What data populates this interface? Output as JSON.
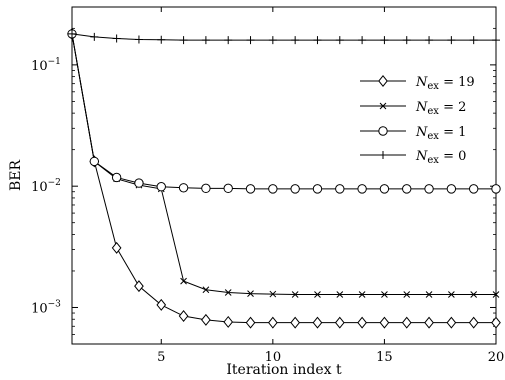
{
  "chart_data": {
    "type": "line",
    "xlabel": "Iteration index t",
    "ylabel": "BER",
    "xlim": [
      1,
      20
    ],
    "ylim": [
      0.0005,
      0.3
    ],
    "yscale": "log",
    "grid": false,
    "legend_position": "right",
    "x_ticks": [
      5,
      10,
      15,
      20
    ],
    "x_tick_labels": [
      "5",
      "10",
      "15",
      "20"
    ],
    "y_ticks": [
      0.001,
      0.01,
      0.1
    ],
    "y_tick_labels": [
      "10",
      "10",
      "10"
    ],
    "y_tick_exponents": [
      "−3",
      "−2",
      "−1"
    ],
    "x": [
      1,
      2,
      3,
      4,
      5,
      6,
      7,
      8,
      9,
      10,
      11,
      12,
      13,
      14,
      15,
      16,
      17,
      18,
      19,
      20
    ],
    "series": [
      {
        "name": "N_ex = 19",
        "legend_text": "N",
        "legend_sub": "ex",
        "legend_value": " = 19",
        "marker": "diamond",
        "values": [
          0.18,
          0.016,
          0.0031,
          0.0015,
          0.00105,
          0.00085,
          0.00079,
          0.00076,
          0.00075,
          0.00075,
          0.00075,
          0.00075,
          0.00075,
          0.00075,
          0.00075,
          0.00075,
          0.00075,
          0.00075,
          0.00075,
          0.00075
        ]
      },
      {
        "name": "N_ex = 2",
        "legend_text": "N",
        "legend_sub": "ex",
        "legend_value": " = 2",
        "marker": "x",
        "values": [
          0.18,
          0.016,
          0.0115,
          0.0102,
          0.0095,
          0.00165,
          0.0014,
          0.00133,
          0.0013,
          0.00129,
          0.00128,
          0.00128,
          0.00128,
          0.00128,
          0.00128,
          0.00128,
          0.00128,
          0.00128,
          0.00128,
          0.00128
        ]
      },
      {
        "name": "N_ex = 1",
        "legend_text": "N",
        "legend_sub": "ex",
        "legend_value": " = 1",
        "marker": "circle",
        "values": [
          0.18,
          0.016,
          0.0118,
          0.0106,
          0.0099,
          0.0097,
          0.0096,
          0.0096,
          0.0095,
          0.0095,
          0.0095,
          0.0095,
          0.0095,
          0.0095,
          0.0095,
          0.0095,
          0.0095,
          0.0095,
          0.0095,
          0.0095
        ]
      },
      {
        "name": "N_ex = 0",
        "legend_text": "N",
        "legend_sub": "ex",
        "legend_value": " = 0",
        "marker": "plus",
        "values": [
          0.18,
          0.17,
          0.165,
          0.162,
          0.161,
          0.16,
          0.16,
          0.16,
          0.16,
          0.16,
          0.16,
          0.16,
          0.16,
          0.16,
          0.16,
          0.16,
          0.16,
          0.16,
          0.16,
          0.16
        ]
      }
    ]
  }
}
